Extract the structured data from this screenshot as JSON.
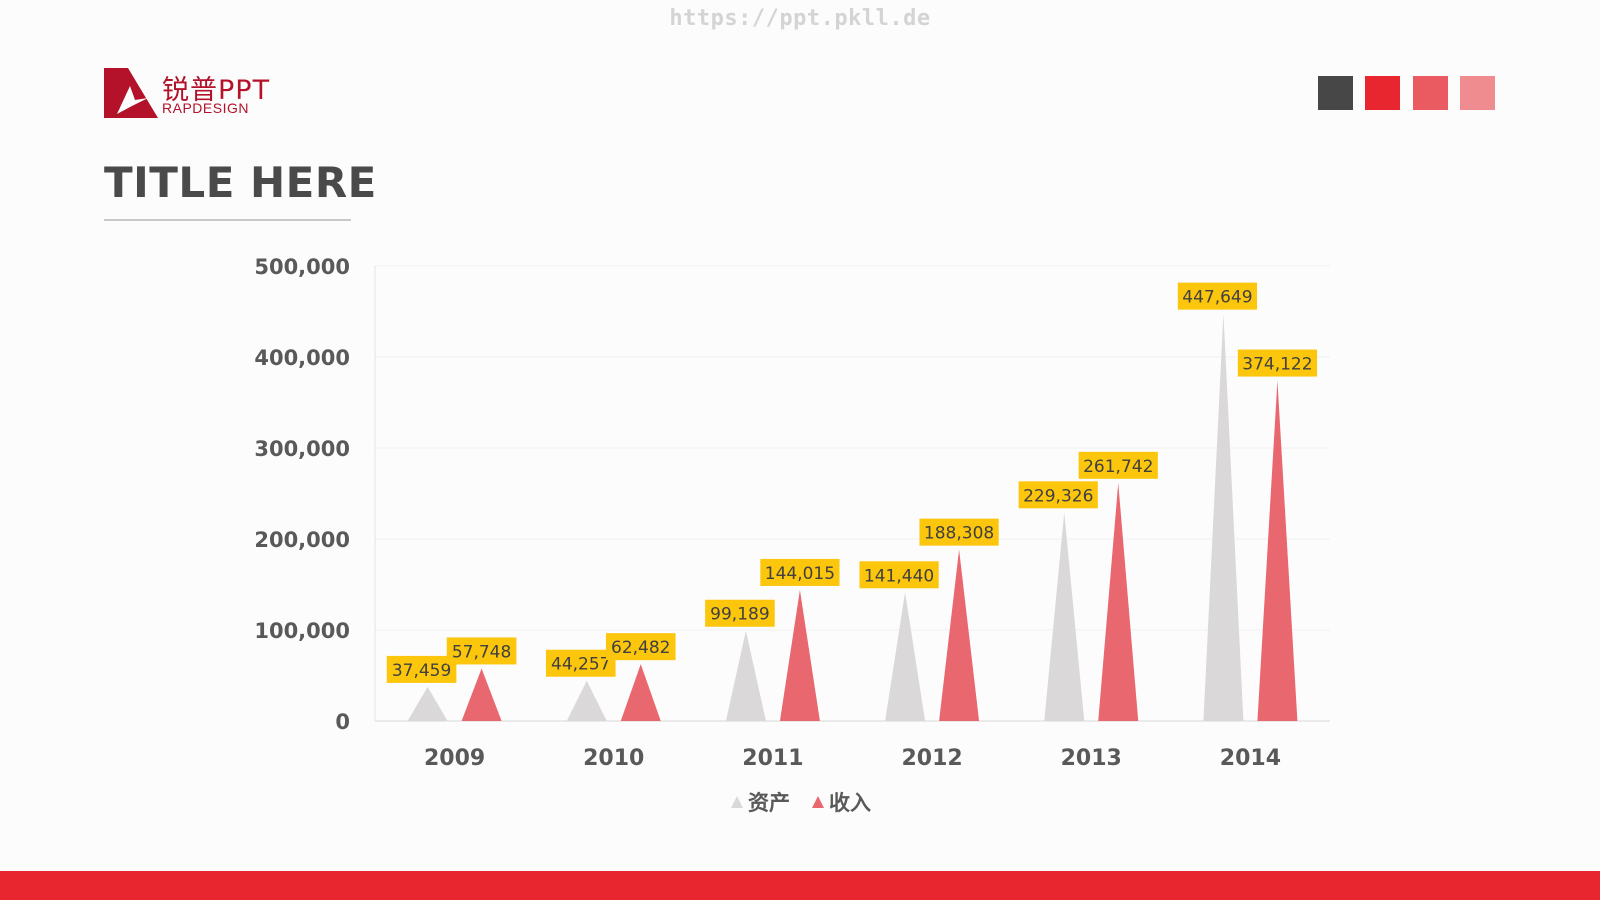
{
  "watermark": "https://ppt.pkll.de",
  "logo": {
    "cn": "锐普PPT",
    "en": "RAPDESIGN"
  },
  "swatches": [
    "#474747",
    "#e8262f",
    "#ea5a61",
    "#ef8c90"
  ],
  "title": "TITLE HERE",
  "colors": {
    "accent": "#e8262f",
    "series_asset": "#dad8d9",
    "series_income": "#e96870",
    "label_bg": "#fcc60d"
  },
  "chart_data": {
    "type": "bar",
    "mark_shape": "triangle",
    "categories": [
      "2009",
      "2010",
      "2011",
      "2012",
      "2013",
      "2014"
    ],
    "series": [
      {
        "name": "资产",
        "values": [
          37459,
          44257,
          99189,
          141440,
          229326,
          447649
        ],
        "value_labels": [
          "37,459",
          "44,257",
          "99,189",
          "141,440",
          "229,326",
          "447,649"
        ],
        "color": "#dad8d9"
      },
      {
        "name": "收入",
        "values": [
          57748,
          62482,
          144015,
          188308,
          261742,
          374122
        ],
        "value_labels": [
          "57,748",
          "62,482",
          "144,015",
          "188,308",
          "261,742",
          "374,122"
        ],
        "color": "#e96870"
      }
    ],
    "ylim": [
      0,
      500000
    ],
    "yticks": [
      0,
      100000,
      200000,
      300000,
      400000,
      500000
    ],
    "ytick_labels": [
      "0",
      "100,000",
      "200,000",
      "300,000",
      "400,000",
      "500,000"
    ],
    "grid": true,
    "legend": "bottom",
    "data_labels": true
  }
}
